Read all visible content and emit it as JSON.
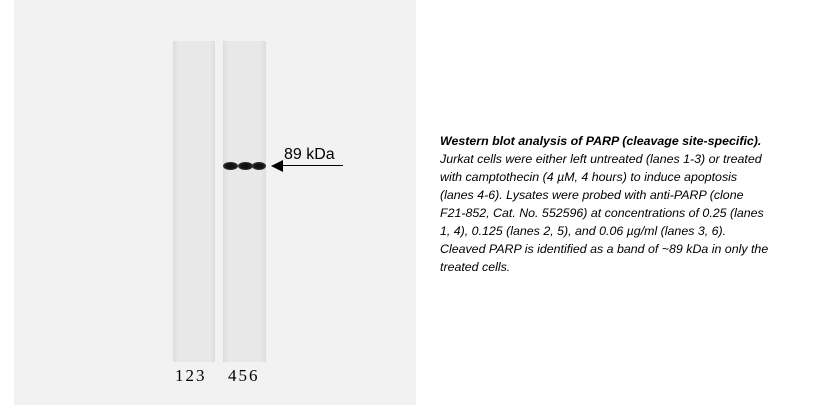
{
  "figure": {
    "band_label": "89 kDa",
    "lane_numbers_group_1": "123",
    "lane_numbers_group_2": "456",
    "band_lanes": [
      4,
      5,
      6
    ]
  },
  "caption": {
    "title": "Western blot analysis of PARP (cleavage site-specific).",
    "lines": [
      "Jurkat cells were either left untreated (lanes 1-3) or treated",
      "with camptothecin (4 µM, 4 hours) to induce apoptosis",
      "(lanes 4-6). Lysates were probed with anti-PARP (clone",
      "F21-852,  Cat. No. 552596) at concentrations of 0.25 (lanes",
      "1, 4), 0.125 (lanes 2, 5), and 0.06 µg/ml (lanes 3, 6).",
      "Cleaved PARP is identified as a band of ~89 kDa in only the",
      "treated cells."
    ]
  }
}
